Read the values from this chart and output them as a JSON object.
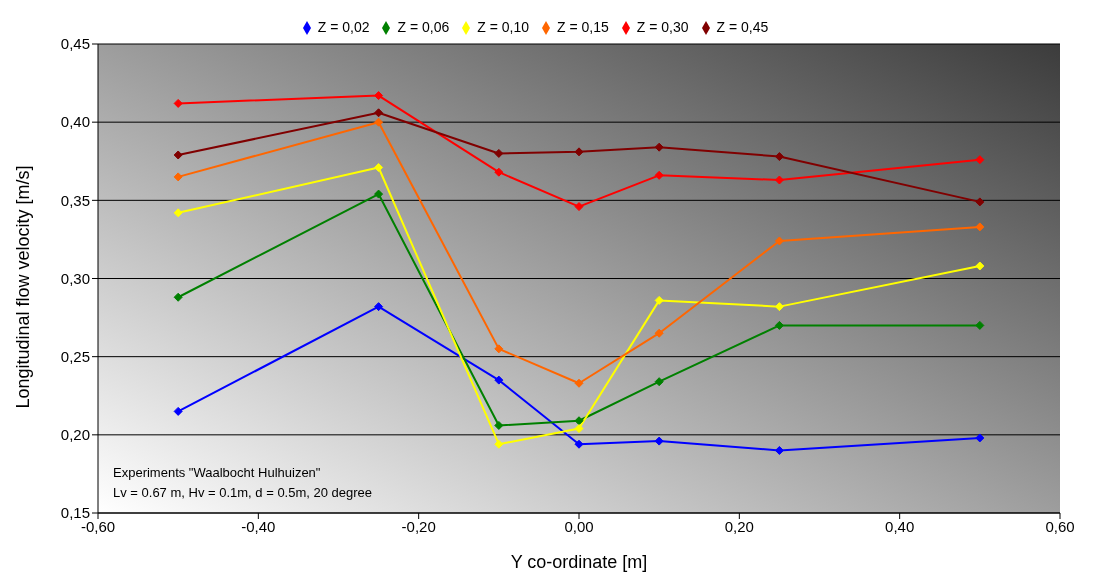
{
  "chart_data": {
    "type": "line",
    "xlabel": "Y co-ordinate [m]",
    "ylabel": "Longitudinal flow velocity  [m/s]",
    "x": [
      -0.5,
      -0.25,
      -0.1,
      0,
      0.1,
      0.25,
      0.5
    ],
    "series": [
      {
        "name": "Z = 0,02",
        "color": "#0000ff",
        "values": [
          0.215,
          0.282,
          0.235,
          0.194,
          0.196,
          0.19,
          0.198
        ]
      },
      {
        "name": "Z = 0,06",
        "color": "#008000",
        "values": [
          0.288,
          0.354,
          0.206,
          0.209,
          0.234,
          0.27,
          0.27
        ]
      },
      {
        "name": "Z = 0,10",
        "color": "#ffff00",
        "values": [
          0.342,
          0.371,
          0.194,
          0.204,
          0.286,
          0.282,
          0.308
        ]
      },
      {
        "name": "Z = 0,15",
        "color": "#ff6600",
        "values": [
          0.365,
          0.4,
          0.255,
          0.233,
          0.265,
          0.324,
          0.333
        ]
      },
      {
        "name": "Z = 0,30",
        "color": "#ff0000",
        "values": [
          0.412,
          0.417,
          0.368,
          0.346,
          0.366,
          0.363,
          0.376
        ]
      },
      {
        "name": "Z = 0,45",
        "color": "#800000",
        "values": [
          0.379,
          0.406,
          0.38,
          0.381,
          0.384,
          0.378,
          0.349
        ]
      }
    ],
    "xlim": [
      -0.6,
      0.6
    ],
    "xticks": [
      {
        "value": -0.6,
        "label": "-0,60"
      },
      {
        "value": -0.4,
        "label": "-0,40"
      },
      {
        "value": -0.2,
        "label": "-0,20"
      },
      {
        "value": 0,
        "label": "0,00"
      },
      {
        "value": 0.2,
        "label": "0,20"
      },
      {
        "value": 0.4,
        "label": "0,40"
      },
      {
        "value": 0.6,
        "label": "0,60"
      }
    ],
    "ylim": [
      0.15,
      0.45
    ],
    "yticks": [
      {
        "value": 0.15,
        "label": "0,15"
      },
      {
        "value": 0.2,
        "label": "0,20"
      },
      {
        "value": 0.25,
        "label": "0,25"
      },
      {
        "value": 0.3,
        "label": "0,30"
      },
      {
        "value": 0.35,
        "label": "0,35"
      },
      {
        "value": 0.4,
        "label": "0,40"
      },
      {
        "value": 0.45,
        "label": "0,45"
      }
    ],
    "grid": "y",
    "legend": "top",
    "marker": "diamond",
    "line_style": "solid",
    "annotations": [
      "Experiments \"Waalbocht Hulhuizen\"",
      "Lv = 0.67 m, Hv = 0.1m, d = 0.5m, 20 degree"
    ]
  }
}
